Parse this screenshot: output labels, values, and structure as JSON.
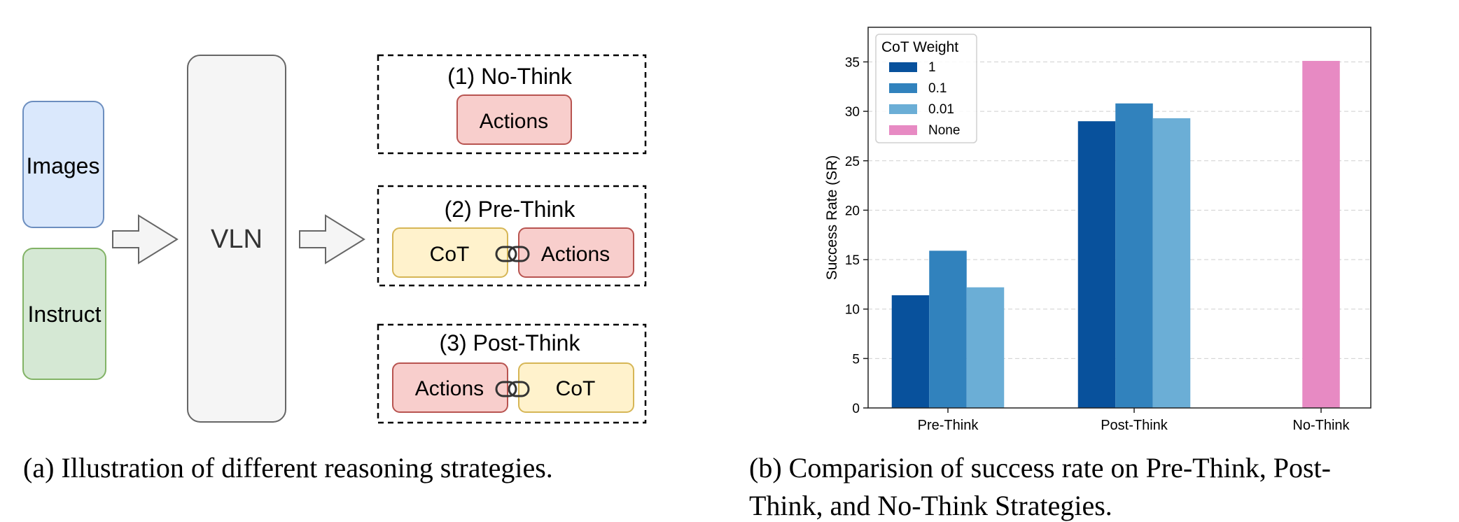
{
  "diagram": {
    "inputs": [
      {
        "label": "Images",
        "fill": "#dae8fc",
        "stroke": "#6c8ebf"
      },
      {
        "label": "Instruct",
        "fill": "#d5e8d4",
        "stroke": "#82b366"
      }
    ],
    "model": {
      "label": "VLN",
      "fill": "#f5f5f5",
      "stroke": "#666666"
    },
    "strategies": [
      {
        "title": "(1) No-Think",
        "blocks": [
          "Actions"
        ]
      },
      {
        "title": "(2) Pre-Think",
        "blocks": [
          "CoT",
          "Actions"
        ]
      },
      {
        "title": "(3) Post-Think",
        "blocks": [
          "Actions",
          "CoT"
        ]
      }
    ],
    "colors": {
      "actions_fill": "#f8cecc",
      "actions_stroke": "#b85450",
      "cot_fill": "#fff2cc",
      "cot_stroke": "#d6b656"
    }
  },
  "captions": {
    "left": "(a) Illustration of different reasoning strategies.",
    "right_line1": "(b) Comparision of success rate on Pre-Think, Post-",
    "right_line2": "Think, and No-Think Strategies."
  },
  "chart_data": {
    "type": "bar",
    "categories": [
      "Pre-Think",
      "Post-Think",
      "No-Think"
    ],
    "ylabel": "Success Rate (SR)",
    "xlabel": "",
    "ylim": [
      0,
      38.5
    ],
    "yticks": [
      0,
      5,
      10,
      15,
      20,
      25,
      30,
      35
    ],
    "grid": "horizontal dashed",
    "legend": {
      "title": "CoT Weight",
      "placement": "top-left"
    },
    "series": [
      {
        "name": "1",
        "color": "#08519c",
        "values": [
          11.4,
          29.0,
          null
        ]
      },
      {
        "name": "0.1",
        "color": "#3182bd",
        "values": [
          15.9,
          30.8,
          null
        ]
      },
      {
        "name": "0.01",
        "color": "#6baed6",
        "values": [
          12.2,
          29.3,
          null
        ]
      },
      {
        "name": "None",
        "color": "#e78ac3",
        "values": [
          null,
          null,
          35.1
        ]
      }
    ]
  }
}
